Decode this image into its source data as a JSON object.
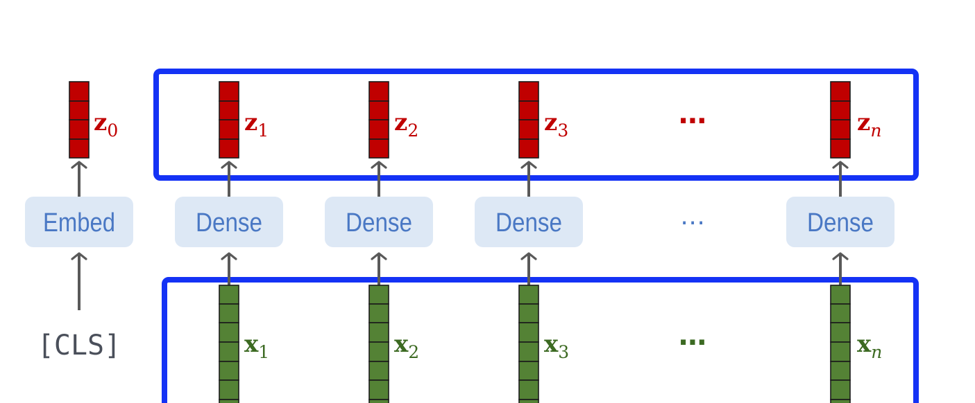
{
  "cls_token": "[CLS]",
  "embed_label": "Embed",
  "dense_label": "Dense",
  "ellipsis": "⋯",
  "outputs": [
    {
      "name": "z",
      "sub": "0"
    },
    {
      "name": "z",
      "sub": "1"
    },
    {
      "name": "z",
      "sub": "2"
    },
    {
      "name": "z",
      "sub": "3"
    },
    {
      "name": "z",
      "sub": "n",
      "italic_sub": true
    }
  ],
  "inputs": [
    {
      "name": "x",
      "sub": "1"
    },
    {
      "name": "x",
      "sub": "2"
    },
    {
      "name": "x",
      "sub": "3"
    },
    {
      "name": "x",
      "sub": "n",
      "italic_sub": true
    }
  ],
  "colors": {
    "output_vector": "#c00000",
    "input_vector": "#548235",
    "input_label": "#3c6a22",
    "group_border": "#1432f5",
    "box_fill": "#dde8f5",
    "box_text": "#4a78c4",
    "arrow": "#595959"
  }
}
